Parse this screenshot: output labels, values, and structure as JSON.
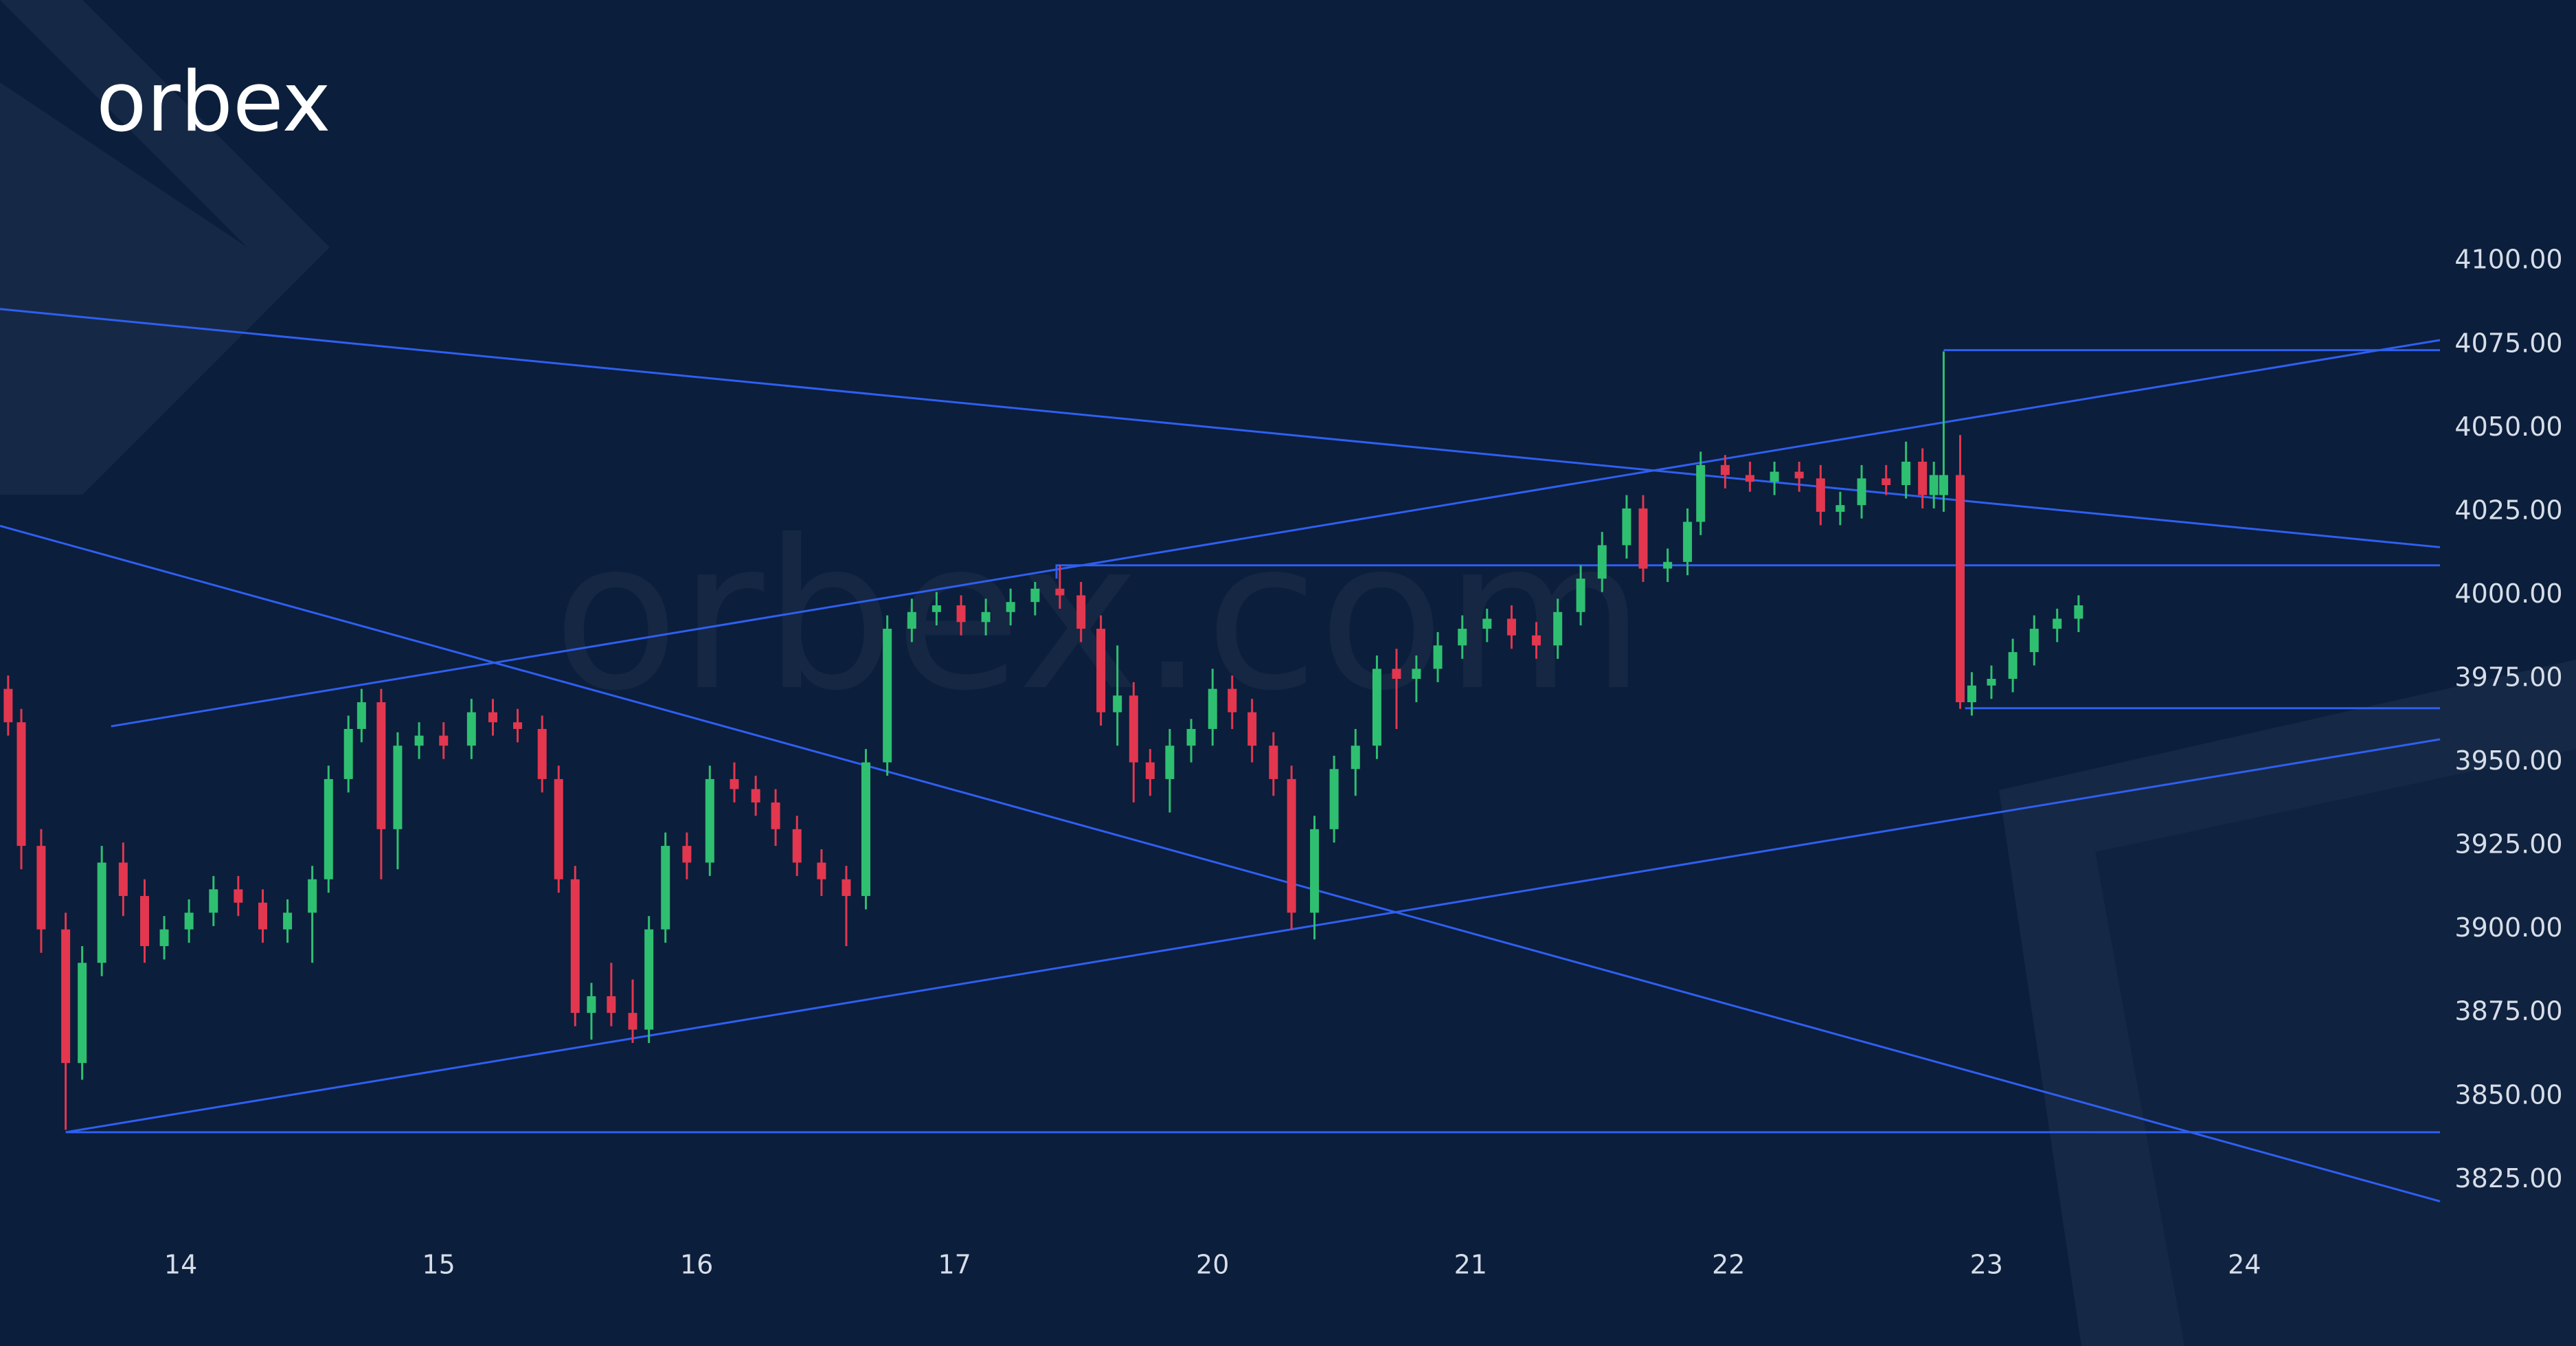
{
  "chart_data": {
    "type": "candlestick",
    "logo": "orbex",
    "watermark": "orbex.com",
    "up_color": "#2fbf71",
    "down_color": "#e2374f",
    "line_color": "#2f5ff0",
    "x": [
      -0.669,
      -0.618,
      -0.541,
      -0.446,
      -0.382,
      -0.306,
      -0.223,
      -0.14,
      -0.064,
      0.032,
      0.127,
      0.223,
      0.318,
      0.414,
      0.51,
      0.573,
      0.65,
      0.701,
      0.777,
      0.841,
      0.924,
      1.019,
      1.127,
      1.21,
      1.306,
      1.401,
      1.465,
      1.529,
      1.592,
      1.669,
      1.752,
      1.815,
      1.879,
      1.962,
      2.051,
      2.146,
      2.229,
      2.306,
      2.389,
      2.484,
      2.58,
      2.656,
      2.739,
      2.834,
      2.93,
      3.025,
      3.121,
      3.217,
      3.312,
      3.408,
      3.49,
      3.567,
      3.631,
      3.694,
      3.758,
      3.834,
      3.917,
      4.0,
      4.076,
      4.153,
      4.236,
      4.306,
      4.395,
      4.471,
      4.554,
      4.637,
      4.713,
      4.79,
      4.873,
      4.968,
      5.064,
      5.159,
      5.255,
      5.338,
      5.427,
      5.51,
      5.605,
      5.669,
      5.764,
      5.841,
      5.892,
      5.987,
      6.083,
      6.178,
      6.274,
      6.357,
      6.433,
      6.516,
      6.611,
      6.688,
      6.752,
      6.796,
      6.834,
      6.898,
      6.943,
      7.019,
      7.102,
      7.185,
      7.274,
      7.357
    ],
    "open": [
      3972,
      3962,
      3925,
      3900,
      3860,
      3890,
      3920,
      3910,
      3895,
      3900,
      3905,
      3912,
      3908,
      3900,
      3905,
      3915,
      3945,
      3960,
      3968,
      3930,
      3955,
      3958,
      3955,
      3965,
      3962,
      3960,
      3945,
      3915,
      3875,
      3880,
      3875,
      3870,
      3900,
      3925,
      3920,
      3945,
      3942,
      3938,
      3930,
      3920,
      3915,
      3910,
      3950,
      3990,
      3995,
      3997,
      3992,
      3995,
      3998,
      4002,
      4000,
      3990,
      3965,
      3970,
      3950,
      3945,
      3955,
      3960,
      3972,
      3965,
      3955,
      3945,
      3905,
      3930,
      3948,
      3955,
      3978,
      3975,
      3978,
      3985,
      3990,
      3993,
      3988,
      3985,
      3995,
      4005,
      4015,
      4026,
      4008,
      4010,
      4022,
      4039,
      4036,
      4034,
      4037,
      4035,
      4025,
      4027,
      4035,
      4033,
      4040,
      4030,
      4030,
      4036,
      3968,
      3973,
      3975,
      3983,
      3990,
      3993
    ],
    "high": [
      3976,
      3966,
      3930,
      3905,
      3895,
      3925,
      3926,
      3915,
      3904,
      3909,
      3916,
      3916,
      3912,
      3909,
      3919,
      3949,
      3964,
      3972,
      3972,
      3959,
      3962,
      3962,
      3969,
      3969,
      3966,
      3964,
      3949,
      3919,
      3884,
      3890,
      3885,
      3904,
      3929,
      3929,
      3949,
      3950,
      3946,
      3942,
      3934,
      3924,
      3919,
      3954,
      3994,
      3999,
      4001,
      4000,
      3999,
      4002,
      4004,
      4009,
      4004,
      3994,
      3985,
      3974,
      3954,
      3960,
      3963,
      3978,
      3976,
      3969,
      3959,
      3949,
      3934,
      3952,
      3960,
      3982,
      3984,
      3982,
      3989,
      3994,
      3996,
      3997,
      3992,
      3999,
      4009,
      4019,
      4030,
      4030,
      4014,
      4026,
      4043,
      4042,
      4040,
      4040,
      4040,
      4039,
      4031,
      4039,
      4039,
      4046,
      4044,
      4040,
      4073,
      4048,
      3977,
      3979,
      3987,
      3994,
      3996,
      4000
    ],
    "low": [
      3958,
      3918,
      3893,
      3840,
      3855,
      3886,
      3904,
      3890,
      3891,
      3896,
      3901,
      3904,
      3896,
      3896,
      3890,
      3911,
      3941,
      3956,
      3915,
      3918,
      3951,
      3951,
      3951,
      3958,
      3956,
      3941,
      3911,
      3871,
      3867,
      3871,
      3866,
      3866,
      3896,
      3915,
      3916,
      3938,
      3934,
      3925,
      3916,
      3910,
      3895,
      3906,
      3946,
      3986,
      3991,
      3988,
      3988,
      3991,
      3994,
      3996,
      3986,
      3961,
      3955,
      3938,
      3940,
      3935,
      3950,
      3955,
      3960,
      3950,
      3940,
      3900,
      3897,
      3926,
      3940,
      3951,
      3960,
      3968,
      3974,
      3981,
      3986,
      3984,
      3981,
      3981,
      3991,
      4001,
      4011,
      4004,
      4004,
      4006,
      4018,
      4032,
      4031,
      4030,
      4031,
      4021,
      4021,
      4023,
      4030,
      4029,
      4026,
      4026,
      4025,
      3966,
      3964,
      3969,
      3971,
      3979,
      3986,
      3989
    ],
    "close": [
      3962,
      3925,
      3900,
      3860,
      3890,
      3920,
      3910,
      3895,
      3900,
      3905,
      3912,
      3908,
      3900,
      3905,
      3915,
      3945,
      3960,
      3968,
      3930,
      3955,
      3958,
      3955,
      3965,
      3962,
      3960,
      3945,
      3915,
      3875,
      3880,
      3875,
      3870,
      3900,
      3925,
      3920,
      3945,
      3942,
      3938,
      3930,
      3920,
      3915,
      3910,
      3950,
      3990,
      3995,
      3997,
      3992,
      3995,
      3998,
      4002,
      4000,
      3990,
      3965,
      3970,
      3950,
      3945,
      3955,
      3960,
      3972,
      3965,
      3955,
      3945,
      3905,
      3930,
      3948,
      3955,
      3978,
      3975,
      3978,
      3985,
      3990,
      3993,
      3988,
      3985,
      3995,
      4005,
      4015,
      4026,
      4008,
      4010,
      4022,
      4039,
      4036,
      4034,
      4037,
      4035,
      4025,
      4027,
      4035,
      4033,
      4040,
      4030,
      4036,
      4036,
      3968,
      3973,
      3975,
      3983,
      3990,
      3993,
      3997
    ],
    "lines": [
      {
        "x": [
          -0.7006,
          8.758
        ],
        "y": [
          4085.7,
          4014.4
        ]
      },
      {
        "x": [
          -0.7006,
          8.758
        ],
        "y": [
          4020.8,
          3818.6
        ]
      },
      {
        "x": [
          -0.27,
          8.758
        ],
        "y": [
          3960.8,
          4076.4
        ]
      },
      {
        "x": [
          -0.446,
          8.758
        ],
        "y": [
          3839.3,
          3956.9
        ]
      },
      {
        "x": [
          -0.446,
          8.758
        ],
        "y": [
          3839.3,
          3839.3
        ]
      },
      {
        "x": [
          3.395,
          3.395,
          8.758
        ],
        "y": [
          4005,
          4009,
          4009
        ]
      },
      {
        "x": [
          6.834,
          8.758
        ],
        "y": [
          4073.4,
          4073.4
        ]
      },
      {
        "x": [
          6.917,
          8.758
        ],
        "y": [
          3966.2,
          3966.2
        ]
      }
    ],
    "xlim": [
      -0.7006,
      8.758
    ],
    "ylim": [
      3775.3,
      4178.2
    ],
    "yticks": [
      {
        "value": 4100,
        "label": "4100.00"
      },
      {
        "value": 4075,
        "label": "4075.00"
      },
      {
        "value": 4050,
        "label": "4050.00"
      },
      {
        "value": 4025,
        "label": "4025.00"
      },
      {
        "value": 4000,
        "label": "4000.00"
      },
      {
        "value": 3975,
        "label": "3975.00"
      },
      {
        "value": 3950,
        "label": "3950.00"
      },
      {
        "value": 3925,
        "label": "3925.00"
      },
      {
        "value": 3900,
        "label": "3900.00"
      },
      {
        "value": 3875,
        "label": "3875.00"
      },
      {
        "value": 3850,
        "label": "3850.00"
      },
      {
        "value": 3825,
        "label": "3825.00"
      }
    ],
    "xticks": [
      {
        "value": 0,
        "label": "14"
      },
      {
        "value": 1,
        "label": "15"
      },
      {
        "value": 2,
        "label": "16"
      },
      {
        "value": 3,
        "label": "17"
      },
      {
        "value": 4,
        "label": "20"
      },
      {
        "value": 5,
        "label": "21"
      },
      {
        "value": 6,
        "label": "22"
      },
      {
        "value": 7,
        "label": "23"
      },
      {
        "value": 8,
        "label": "24"
      }
    ]
  }
}
